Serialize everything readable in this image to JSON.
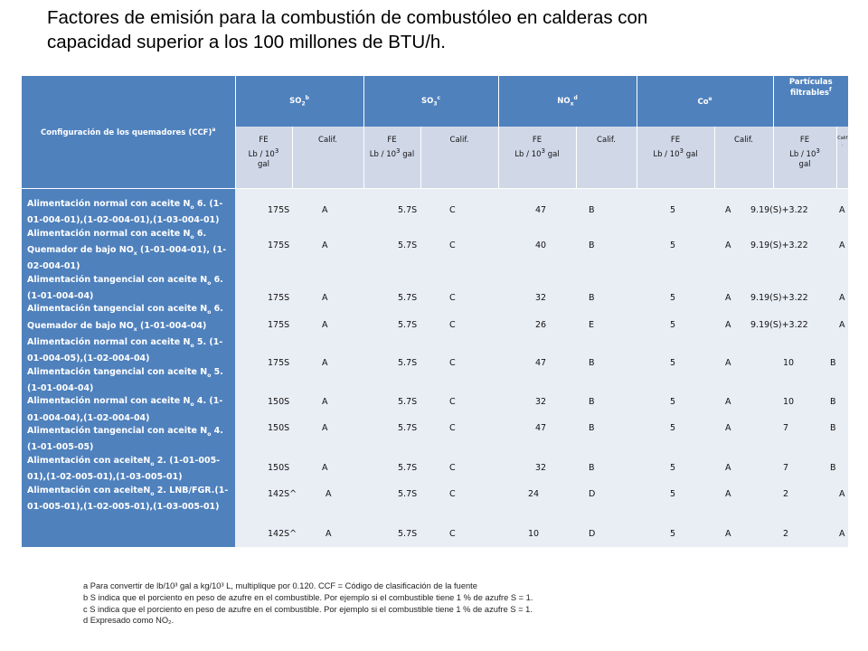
{
  "title": {
    "line1": "Factores de emisión para la combustión de combustóleo en calderas con",
    "line2": "capacidad superior a los 100 millones de BTU/h."
  },
  "table": {
    "header": {
      "config": "Configuración de los quemadores  (CCF)",
      "config_sup": "a",
      "so2": "SO",
      "so2_sub": "2",
      "so2_sup": "b",
      "so3": "SO",
      "so3_sub": "3",
      "so3_sup": "c",
      "nox": "NO",
      "nox_sub": "x",
      "nox_sup": "d",
      "co": "Co",
      "co_sup": "e",
      "part_line1": "Partículas",
      "part_line2": "filtrables",
      "part_sup": "f"
    },
    "subheader": {
      "fe": "FE",
      "unit_a": "Lb / 10",
      "unit_sup": "3",
      "unit_gal": "gal",
      "calif": "Calif.",
      "calif_small_1": "Calif",
      "calif_small_2": "."
    },
    "rows": [
      {
        "config": [
          "Alimentación normal con aceite N",
          "o",
          " 6. (1-01-004-01),",
          "(1-02-004-01),(1-03-004-01)"
        ],
        "so2": "175S",
        "so2_c": "A",
        "so3": "5.7S",
        "so3_c": "C",
        "nox": "47",
        "nox_c": "B",
        "co": "5",
        "co_c": "A",
        "pf": "9.19(S)+3.22",
        "pf_c": "A"
      },
      {
        "config": [
          "Alimentación normal con aceite N",
          "o",
          " 6. Quemador de bajo NO",
          "x",
          " (1-01-004-01), (1-02-004-01)"
        ],
        "so2": "175S",
        "so2_c": "A",
        "so3": "5.7S",
        "so3_c": "C",
        "nox": "40",
        "nox_c": "B",
        "co": "5",
        "co_c": "A",
        "pf": "9.19(S)+3.22",
        "pf_c": "A"
      },
      {
        "config": [
          "Alimentación tangencial con aceite N",
          "o",
          " 6. (1-01-004-04)"
        ],
        "so2": "175S",
        "so2_c": "A",
        "so3": "5.7S",
        "so3_c": "C",
        "nox": "32",
        "nox_c": "B",
        "co": "5",
        "co_c": "A",
        "pf": "9.19(S)+3.22",
        "pf_c": "A"
      },
      {
        "config": [
          "Alimentación tangencial con aceite N",
          "o",
          " 6. Quemador de bajo NO",
          "x",
          " (1-01-004-04)"
        ],
        "so2": "175S",
        "so2_c": "A",
        "so3": "5.7S",
        "so3_c": "C",
        "nox": "26",
        "nox_c": "E",
        "co": "5",
        "co_c": "A",
        "pf": "9.19(S)+3.22",
        "pf_c": "A"
      },
      {
        "config": [
          "Alimentación normal con aceite N",
          "o",
          " 5. (1-01-004-05),",
          "(1-02-004-04)"
        ],
        "so2": "175S",
        "so2_c": "A",
        "so3": "5.7S",
        "so3_c": "C",
        "nox": "47",
        "nox_c": "B",
        "co": "5",
        "co_c": "A",
        "pf": "10",
        "pf_c": "B"
      },
      {
        "config": [
          "Alimentación tangencial con aceite N",
          "o",
          " 5. (1-01-004-04)"
        ],
        "so2": "",
        "so2_c": "",
        "so3": "",
        "so3_c": "",
        "nox": "",
        "nox_c": "",
        "co": "",
        "co_c": "",
        "pf": "",
        "pf_c": ""
      },
      {
        "config": [
          "Alimentación normal con aceite N",
          "o",
          " 4. (1-01-004-04),",
          "(1-02-004-04)"
        ],
        "so2": "150S",
        "so2_c": "A",
        "so3": "5.7S",
        "so3_c": "C",
        "nox": "32",
        "nox_c": "B",
        "co": "5",
        "co_c": "A",
        "pf": "10",
        "pf_c": "B"
      },
      {
        "config": [
          "Alimentación tangencial con aceite N",
          "o",
          " 4. (1-01-005-05)"
        ],
        "so2": "150S",
        "so2_c": "A",
        "so3": "5.7S",
        "so3_c": "C",
        "nox": "47",
        "nox_c": "B",
        "co": "5",
        "co_c": "A",
        "pf": "7",
        "pf_c": "B"
      },
      {
        "config": [
          "Alimentación con aceite",
          "N",
          "o",
          " 2. (1-01-005-01),",
          "(1-02-005-01),(1-03-005-01)"
        ],
        "so2": "150S",
        "so2_c": "A",
        "so3": "5.7S",
        "so3_c": "C",
        "nox": "32",
        "nox_c": "B",
        "co": "5",
        "co_c": "A",
        "pf": "7",
        "pf_c": "B"
      },
      {
        "config": [
          "Alimentación  con aceite",
          "N",
          "o",
          " 2. LNB/FGR.",
          "(1-01-005-01),",
          "(1-02-005-01),(1-03-005-01)"
        ],
        "so2": "142S^",
        "so2_c": "A",
        "so3": "5.7S",
        "so3_c": "C",
        "nox": "24",
        "nox_c": "D",
        "co": "5",
        "co_c": "A",
        "pf": "2",
        "pf_c": "A"
      },
      {
        "config": [],
        "so2": "142S^",
        "so2_c": "A",
        "so3": "5.7S",
        "so3_c": "C",
        "nox": "10",
        "nox_c": "D",
        "co": "5",
        "co_c": "A",
        "pf": "2",
        "pf_c": "A"
      }
    ]
  },
  "notes": [
    "a  Para convertir de lb/10³ gal a kg/10³ L, multiplique por 0.120. CCF = Código de clasificación de la fuente",
    "b  S indica que el porciento en peso de azufre en el combustible. Por ejemplo si el combustible tiene 1 % de azufre S = 1.",
    "c  S indica que el porciento en peso de azufre en el combustible. Por ejemplo si el combustible tiene 1 % de azufre S = 1.",
    "d  Expresado como NO₂."
  ],
  "colors": {
    "header_blue": "#4f81bd",
    "subheader": "#d0d8e8",
    "body": "#e9edf4"
  }
}
